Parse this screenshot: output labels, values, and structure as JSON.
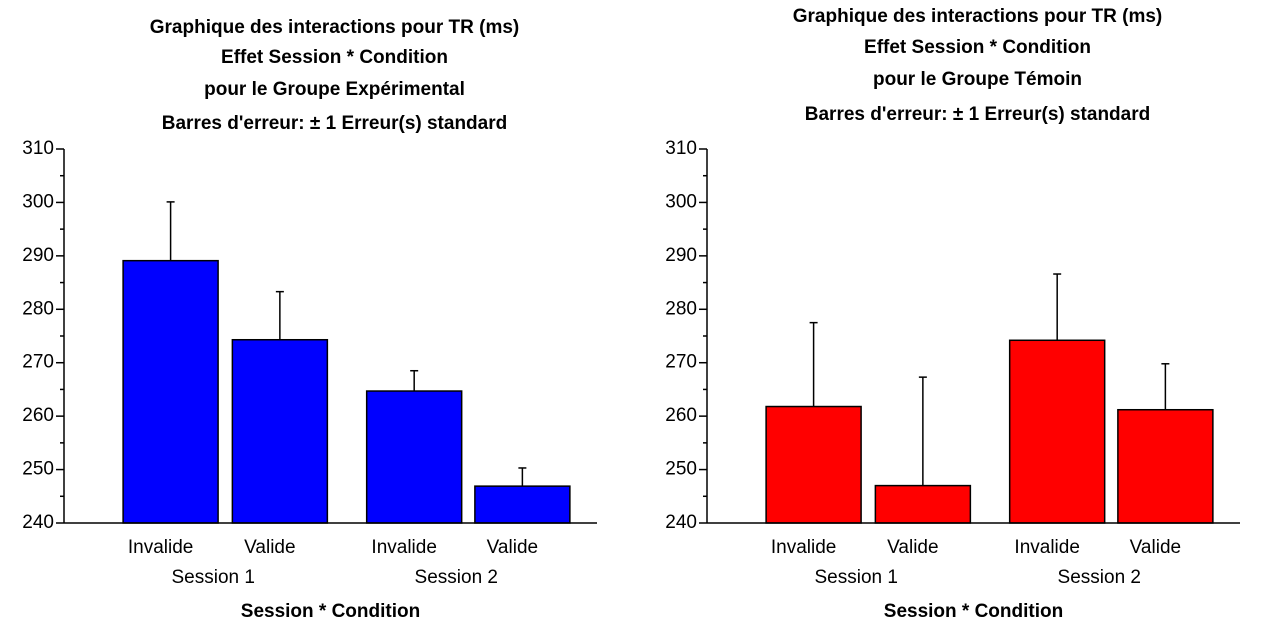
{
  "chart_data": [
    {
      "type": "bar",
      "title": [
        "Graphique des interactions pour TR (ms)",
        "Effet Session * Condition",
        "pour le Groupe Expérimental",
        "Barres d'erreur: ± 1 Erreur(s) standard"
      ],
      "categories": [
        "Invalide",
        "Valide",
        "Invalide",
        "Valide"
      ],
      "groups": [
        "Session 1",
        "Session 2"
      ],
      "xlabel": "Session * Condition",
      "values": [
        289.1,
        274.3,
        264.7,
        246.9
      ],
      "errors": [
        11,
        9,
        3.8,
        3.4
      ],
      "color": "#0000ff",
      "ylim": [
        240,
        310
      ],
      "yticks": [
        240,
        250,
        260,
        270,
        280,
        290,
        300,
        310
      ]
    },
    {
      "type": "bar",
      "title": [
        "Graphique des interactions pour TR (ms)",
        "Effet Session * Condition",
        "pour le Groupe Témoin",
        "Barres d'erreur: ± 1 Erreur(s) standard"
      ],
      "categories": [
        "Invalide",
        "Valide",
        "Invalide",
        "Valide"
      ],
      "groups": [
        "Session 1",
        "Session 2"
      ],
      "xlabel": "Session * Condition",
      "values": [
        261.8,
        247,
        274.2,
        261.2
      ],
      "errors": [
        15.7,
        20.3,
        12.4,
        8.6
      ],
      "color": "#ff0000",
      "ylim": [
        240,
        310
      ],
      "yticks": [
        240,
        250,
        260,
        270,
        280,
        290,
        300,
        310
      ]
    }
  ]
}
